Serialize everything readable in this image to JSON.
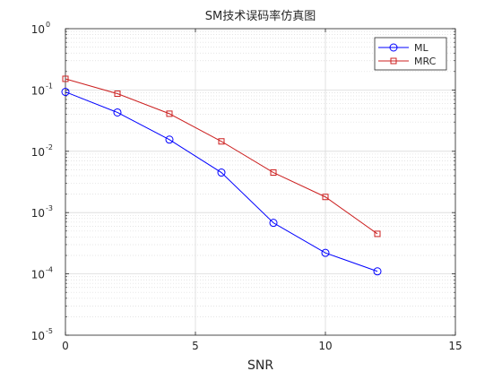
{
  "chart_data": {
    "type": "line",
    "title": "SM技术误码率仿真图",
    "xlabel": "SNR",
    "ylabel": "",
    "xlim": [
      0,
      15
    ],
    "ylim_exponent": [
      -5,
      0
    ],
    "yscale": "log",
    "grid": true,
    "minor_grid": true,
    "legend_position": "top-right",
    "x_ticks": [
      {
        "value": 0,
        "label": "0"
      },
      {
        "value": 5,
        "label": "5"
      },
      {
        "value": 10,
        "label": "10"
      },
      {
        "value": 15,
        "label": "15"
      }
    ],
    "y_ticks": [
      {
        "exp": 0,
        "base": "10",
        "power": "0"
      },
      {
        "exp": -1,
        "base": "10",
        "power": "-1"
      },
      {
        "exp": -2,
        "base": "10",
        "power": "-2"
      },
      {
        "exp": -3,
        "base": "10",
        "power": "-3"
      },
      {
        "exp": -4,
        "base": "10",
        "power": "-4"
      },
      {
        "exp": -5,
        "base": "10",
        "power": "-5"
      }
    ],
    "x": [
      0,
      2,
      4,
      6,
      8,
      10,
      12
    ],
    "series": [
      {
        "name": "ML",
        "color": "#0000ff",
        "marker": "circle",
        "values": [
          0.093,
          0.043,
          0.0155,
          0.0045,
          0.00068,
          0.00022,
          0.00011
        ]
      },
      {
        "name": "MRC",
        "color": "#cc2020",
        "marker": "square",
        "values": [
          0.152,
          0.087,
          0.041,
          0.0145,
          0.0045,
          0.0018,
          0.00045
        ]
      }
    ]
  }
}
